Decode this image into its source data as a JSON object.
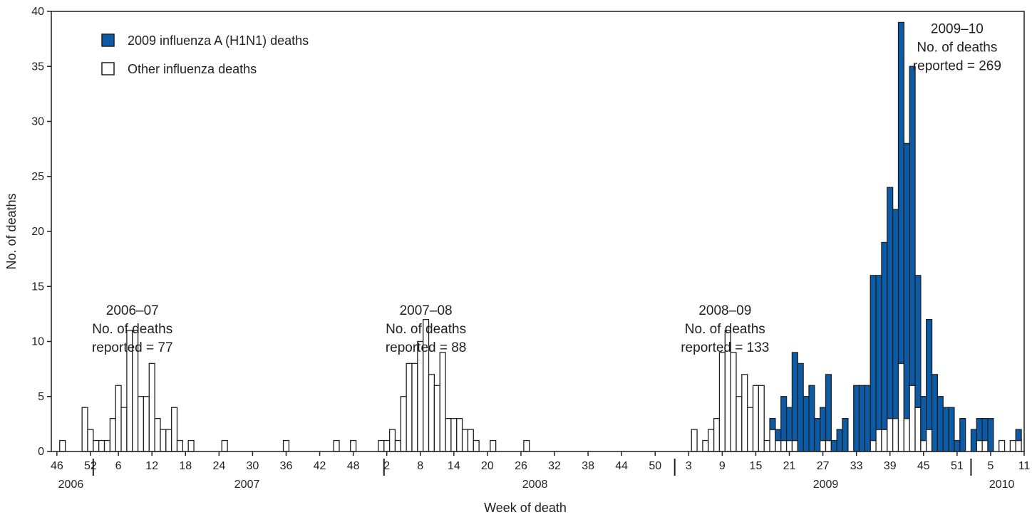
{
  "chart_data": {
    "type": "bar",
    "stacked": true,
    "xlabel": "Week of death",
    "ylabel": "No. of deaths",
    "ylim": [
      0,
      40
    ],
    "y_ticks": [
      0,
      5,
      10,
      15,
      20,
      25,
      30,
      35,
      40
    ],
    "x_start": {
      "year": 2006,
      "week": 46
    },
    "x_tick_labels": [
      "46",
      "52",
      "6",
      "12",
      "18",
      "24",
      "30",
      "36",
      "42",
      "48",
      "2",
      "8",
      "14",
      "20",
      "26",
      "32",
      "38",
      "44",
      "50",
      "3",
      "9",
      "15",
      "21",
      "27",
      "33",
      "39",
      "45",
      "51",
      "5",
      "11"
    ],
    "x_tick_positions": [
      0,
      6,
      11,
      17,
      23,
      29,
      35,
      41,
      47,
      53,
      59,
      65,
      71,
      77,
      83,
      89,
      95,
      101,
      107,
      113,
      119,
      125,
      131,
      137,
      143,
      149,
      155,
      161,
      167,
      173
    ],
    "year_labels": [
      "2006",
      "2007",
      "2008",
      "2009",
      "2010"
    ],
    "year_label_positions": [
      2.5,
      34,
      85.5,
      137.5,
      169
    ],
    "year_boundaries": [
      6.5,
      58.5,
      110.5,
      163.5
    ],
    "grid": false,
    "legend_position": "top-left",
    "colors": {
      "h1n1": "#0b5ca8",
      "other": "#ffffff",
      "stroke": "#231f20"
    },
    "series": [
      {
        "name": "2009 influenza A (H1N1) deaths",
        "values": [
          0,
          0,
          0,
          0,
          0,
          0,
          0,
          0,
          0,
          0,
          0,
          0,
          0,
          0,
          0,
          0,
          0,
          0,
          0,
          0,
          0,
          0,
          0,
          0,
          0,
          0,
          0,
          0,
          0,
          0,
          0,
          0,
          0,
          0,
          0,
          0,
          0,
          0,
          0,
          0,
          0,
          0,
          0,
          0,
          0,
          0,
          0,
          0,
          0,
          0,
          0,
          0,
          0,
          0,
          0,
          0,
          0,
          0,
          0,
          0,
          0,
          0,
          0,
          0,
          0,
          0,
          0,
          0,
          0,
          0,
          0,
          0,
          0,
          0,
          0,
          0,
          0,
          0,
          0,
          0,
          0,
          0,
          0,
          0,
          0,
          0,
          0,
          0,
          0,
          0,
          0,
          0,
          0,
          0,
          0,
          0,
          0,
          0,
          0,
          0,
          0,
          0,
          0,
          0,
          0,
          0,
          0,
          0,
          0,
          0,
          0,
          0,
          0,
          0,
          0,
          0,
          0,
          0,
          0,
          0,
          0,
          0,
          0,
          0,
          0,
          0,
          0,
          0,
          1,
          1,
          4,
          3,
          8,
          8,
          5,
          6,
          3,
          3,
          6,
          1,
          2,
          3,
          0,
          6,
          6,
          6,
          15,
          14,
          17,
          21,
          19,
          31,
          25,
          29,
          12,
          4,
          10,
          7,
          5,
          4,
          4,
          1,
          3,
          0,
          2,
          2,
          2,
          3,
          0,
          0,
          0,
          0,
          1
        ],
        "annotation": ""
      },
      {
        "name": "Other influenza deaths",
        "values": [
          0,
          1,
          0,
          0,
          0,
          4,
          2,
          1,
          1,
          1,
          3,
          6,
          4,
          11,
          11,
          5,
          5,
          8,
          3,
          2,
          2,
          4,
          1,
          0,
          1,
          0,
          0,
          0,
          0,
          0,
          1,
          0,
          0,
          0,
          0,
          0,
          0,
          0,
          0,
          0,
          0,
          1,
          0,
          0,
          0,
          0,
          0,
          0,
          0,
          0,
          1,
          0,
          0,
          1,
          0,
          0,
          0,
          0,
          1,
          1,
          2,
          1,
          5,
          8,
          8,
          10,
          12,
          7,
          6,
          9,
          3,
          3,
          3,
          2,
          2,
          1,
          0,
          0,
          1,
          0,
          0,
          0,
          0,
          0,
          1,
          0,
          0,
          0,
          0,
          0,
          0,
          0,
          0,
          0,
          0,
          0,
          0,
          0,
          0,
          0,
          0,
          0,
          0,
          0,
          0,
          0,
          0,
          0,
          0,
          0,
          0,
          0,
          0,
          0,
          2,
          0,
          1,
          2,
          3,
          9,
          11,
          9,
          5,
          7,
          4,
          6,
          6,
          1,
          2,
          1,
          1,
          1,
          1,
          0,
          0,
          0,
          0,
          1,
          1,
          0,
          0,
          0,
          0,
          0,
          0,
          0,
          1,
          2,
          2,
          3,
          3,
          8,
          3,
          6,
          4,
          1,
          2,
          0,
          0,
          0,
          0,
          0,
          0,
          0,
          0,
          1,
          1,
          0,
          0,
          1,
          0,
          1,
          1
        ]
      }
    ],
    "annotations": [
      {
        "lines": [
          "2006–07",
          "No. of deaths",
          "reported = 77"
        ],
        "x": 13.5,
        "y": 13.6
      },
      {
        "lines": [
          "2007–08",
          "No. of deaths",
          "reported = 88"
        ],
        "x": 66,
        "y": 13.6
      },
      {
        "lines": [
          "2008–09",
          "No. of deaths",
          "reported = 133"
        ],
        "x": 119.5,
        "y": 13.6
      },
      {
        "lines": [
          "2009–10",
          "No. of deaths",
          "reported = 269"
        ],
        "x": 161,
        "y": 39.2
      }
    ]
  }
}
